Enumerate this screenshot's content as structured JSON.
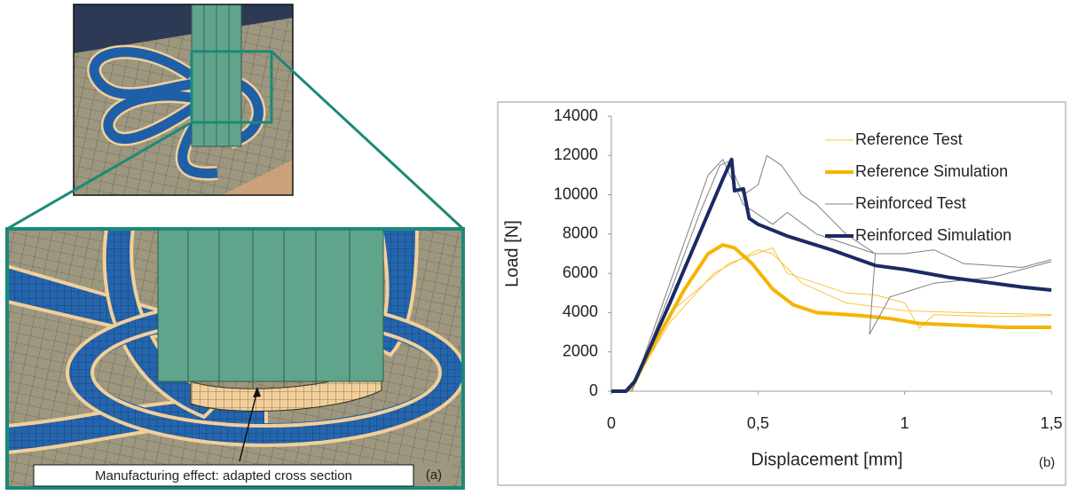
{
  "panel_a": {
    "annotation": "Manufacturing effect: adapted cross section",
    "label": "(a)"
  },
  "chart_data": {
    "type": "line",
    "annotation": "(b)",
    "x_label": "Displacement [mm]",
    "y_label": "Load [N]",
    "xlim": [
      0,
      1.5
    ],
    "xticks": [
      0,
      {
        "value": 0.5,
        "label": "0,5"
      },
      1,
      {
        "value": 1.5,
        "label": "1,5"
      }
    ],
    "ylim": [
      0,
      14000
    ],
    "yticks": [
      0,
      2000,
      4000,
      6000,
      8000,
      10000,
      12000,
      14000
    ],
    "grid": false,
    "legend": "top-right",
    "series": [
      {
        "name": "Reference Test",
        "color": "#f5c542",
        "linewidth": 1,
        "x": [
          0,
          0.06,
          0.2,
          0.35,
          0.5,
          0.55,
          0.65,
          0.8,
          1.0,
          1.2,
          1.5,
          null,
          0.07,
          0.2,
          0.4,
          0.55,
          0.6,
          0.8,
          0.9,
          1.0,
          1.05,
          1.1,
          1.3,
          1.5
        ],
        "values": [
          0,
          0,
          3500,
          6000,
          7200,
          7000,
          5500,
          4500,
          4100,
          4000,
          3900,
          null,
          0,
          4000,
          6500,
          7300,
          6000,
          5000,
          4900,
          4500,
          3200,
          3900,
          3800,
          3850
        ]
      },
      {
        "name": "Reference Simulation",
        "color": "#f5b400",
        "linewidth": 4,
        "x": [
          0,
          0.05,
          0.07,
          0.15,
          0.25,
          0.33,
          0.38,
          0.42,
          0.48,
          0.55,
          0.62,
          0.7,
          0.85,
          0.95,
          1.05,
          1.2,
          1.35,
          1.5
        ],
        "values": [
          0,
          0,
          200,
          2500,
          5200,
          7000,
          7450,
          7300,
          6500,
          5200,
          4400,
          4000,
          3850,
          3700,
          3450,
          3350,
          3250,
          3250
        ]
      },
      {
        "name": "Reinforced Test",
        "color": "#808080",
        "linewidth": 1,
        "x": [
          0,
          0.07,
          0.2,
          0.3,
          0.37,
          0.4,
          0.45,
          0.5,
          0.53,
          0.58,
          0.65,
          0.7,
          0.8,
          0.9,
          1.0,
          1.1,
          1.2,
          1.4,
          1.5,
          null,
          0.07,
          0.2,
          0.33,
          0.38,
          0.45,
          0.55,
          0.6,
          0.7,
          0.9,
          0.88,
          0.95,
          1.1,
          1.3,
          1.5
        ],
        "values": [
          0,
          0,
          5000,
          9000,
          11500,
          11700,
          10000,
          10500,
          12000,
          11500,
          10000,
          9500,
          8000,
          7000,
          7000,
          7200,
          6500,
          6300,
          6700,
          null,
          0,
          5500,
          11000,
          11800,
          9500,
          8500,
          9100,
          8000,
          7000,
          2900,
          4800,
          5500,
          5800,
          6600
        ]
      },
      {
        "name": "Reinforced Simulation",
        "color": "#1b2a66",
        "linewidth": 4,
        "x": [
          0,
          0.05,
          0.08,
          0.2,
          0.3,
          0.38,
          0.41,
          0.42,
          0.45,
          0.47,
          0.5,
          0.6,
          0.75,
          0.9,
          1.0,
          1.15,
          1.3,
          1.4,
          1.5
        ],
        "values": [
          0,
          0,
          500,
          4500,
          8000,
          10800,
          11800,
          10200,
          10300,
          8800,
          8500,
          7900,
          7200,
          6400,
          6200,
          5800,
          5500,
          5300,
          5150
        ]
      }
    ]
  }
}
